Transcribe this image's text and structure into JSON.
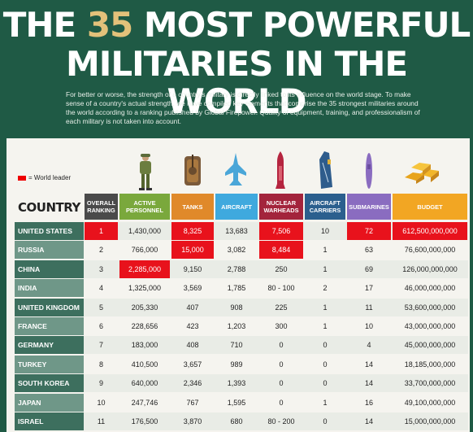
{
  "header": {
    "title_part1": "THE ",
    "title_number": "35",
    "title_part2": " MOST POWERFUL",
    "title_line2": "MILITARIES IN THE WORLD",
    "description": "For better or worse, the strength of a country's military is directly linked to its influence on the world stage. To make sense of a country's actual strength, we have compiled key elements that comprise the 35 strongest militaries around the world according to a ranking published by Global Firepower. Quality of equipment, training, and professionalism of each military is not taken into account."
  },
  "legend": {
    "label": "= World leader",
    "color": "#e8121c"
  },
  "table": {
    "country_header": "COUNTRY",
    "columns": [
      {
        "label": "OVERALL RANKING",
        "color": "#4a4a4a"
      },
      {
        "label": "ACTIVE PERSONNEL",
        "color": "#7aa83c"
      },
      {
        "label": "TANKS",
        "color": "#e0892a"
      },
      {
        "label": "AIRCRAFT",
        "color": "#3fa9de"
      },
      {
        "label": "NUCLEAR WARHEADS",
        "color": "#a3243c"
      },
      {
        "label": "AIRCRAFT CARRIERS",
        "color": "#2b5f8e"
      },
      {
        "label": "SUBMARINES",
        "color": "#8a6cc0"
      },
      {
        "label": "BUDGET",
        "color": "#f2a623"
      }
    ],
    "rows": [
      {
        "country": "UNITED STATES",
        "values": [
          "1",
          "1,430,000",
          "8,325",
          "13,683",
          "7,506",
          "10",
          "72",
          "612,500,000,000"
        ],
        "leaders": [
          0,
          2,
          4,
          6,
          7
        ]
      },
      {
        "country": "RUSSIA",
        "values": [
          "2",
          "766,000",
          "15,000",
          "3,082",
          "8,484",
          "1",
          "63",
          "76,600,000,000"
        ],
        "leaders": [
          2,
          4
        ]
      },
      {
        "country": "CHINA",
        "values": [
          "3",
          "2,285,000",
          "9,150",
          "2,788",
          "250",
          "1",
          "69",
          "126,000,000,000"
        ],
        "leaders": [
          1
        ]
      },
      {
        "country": "INDIA",
        "values": [
          "4",
          "1,325,000",
          "3,569",
          "1,785",
          "80 - 100",
          "2",
          "17",
          "46,000,000,000"
        ],
        "leaders": []
      },
      {
        "country": "UNITED KINGDOM",
        "values": [
          "5",
          "205,330",
          "407",
          "908",
          "225",
          "1",
          "11",
          "53,600,000,000"
        ],
        "leaders": []
      },
      {
        "country": "FRANCE",
        "values": [
          "6",
          "228,656",
          "423",
          "1,203",
          "300",
          "1",
          "10",
          "43,000,000,000"
        ],
        "leaders": []
      },
      {
        "country": "GERMANY",
        "values": [
          "7",
          "183,000",
          "408",
          "710",
          "0",
          "0",
          "4",
          "45,000,000,000"
        ],
        "leaders": []
      },
      {
        "country": "TURKEY",
        "values": [
          "8",
          "410,500",
          "3,657",
          "989",
          "0",
          "0",
          "14",
          "18,185,000,000"
        ],
        "leaders": []
      },
      {
        "country": "SOUTH KOREA",
        "values": [
          "9",
          "640,000",
          "2,346",
          "1,393",
          "0",
          "0",
          "14",
          "33,700,000,000"
        ],
        "leaders": []
      },
      {
        "country": "JAPAN",
        "values": [
          "10",
          "247,746",
          "767",
          "1,595",
          "0",
          "1",
          "16",
          "49,100,000,000"
        ],
        "leaders": []
      },
      {
        "country": "ISRAEL",
        "values": [
          "11",
          "176,500",
          "3,870",
          "680",
          "80 - 200",
          "0",
          "14",
          "15,000,000,000"
        ],
        "leaders": []
      }
    ]
  },
  "icons": [
    "soldier-icon",
    "tank-icon",
    "jet-icon",
    "warhead-icon",
    "carrier-icon",
    "submarine-icon",
    "gold-bars-icon"
  ]
}
